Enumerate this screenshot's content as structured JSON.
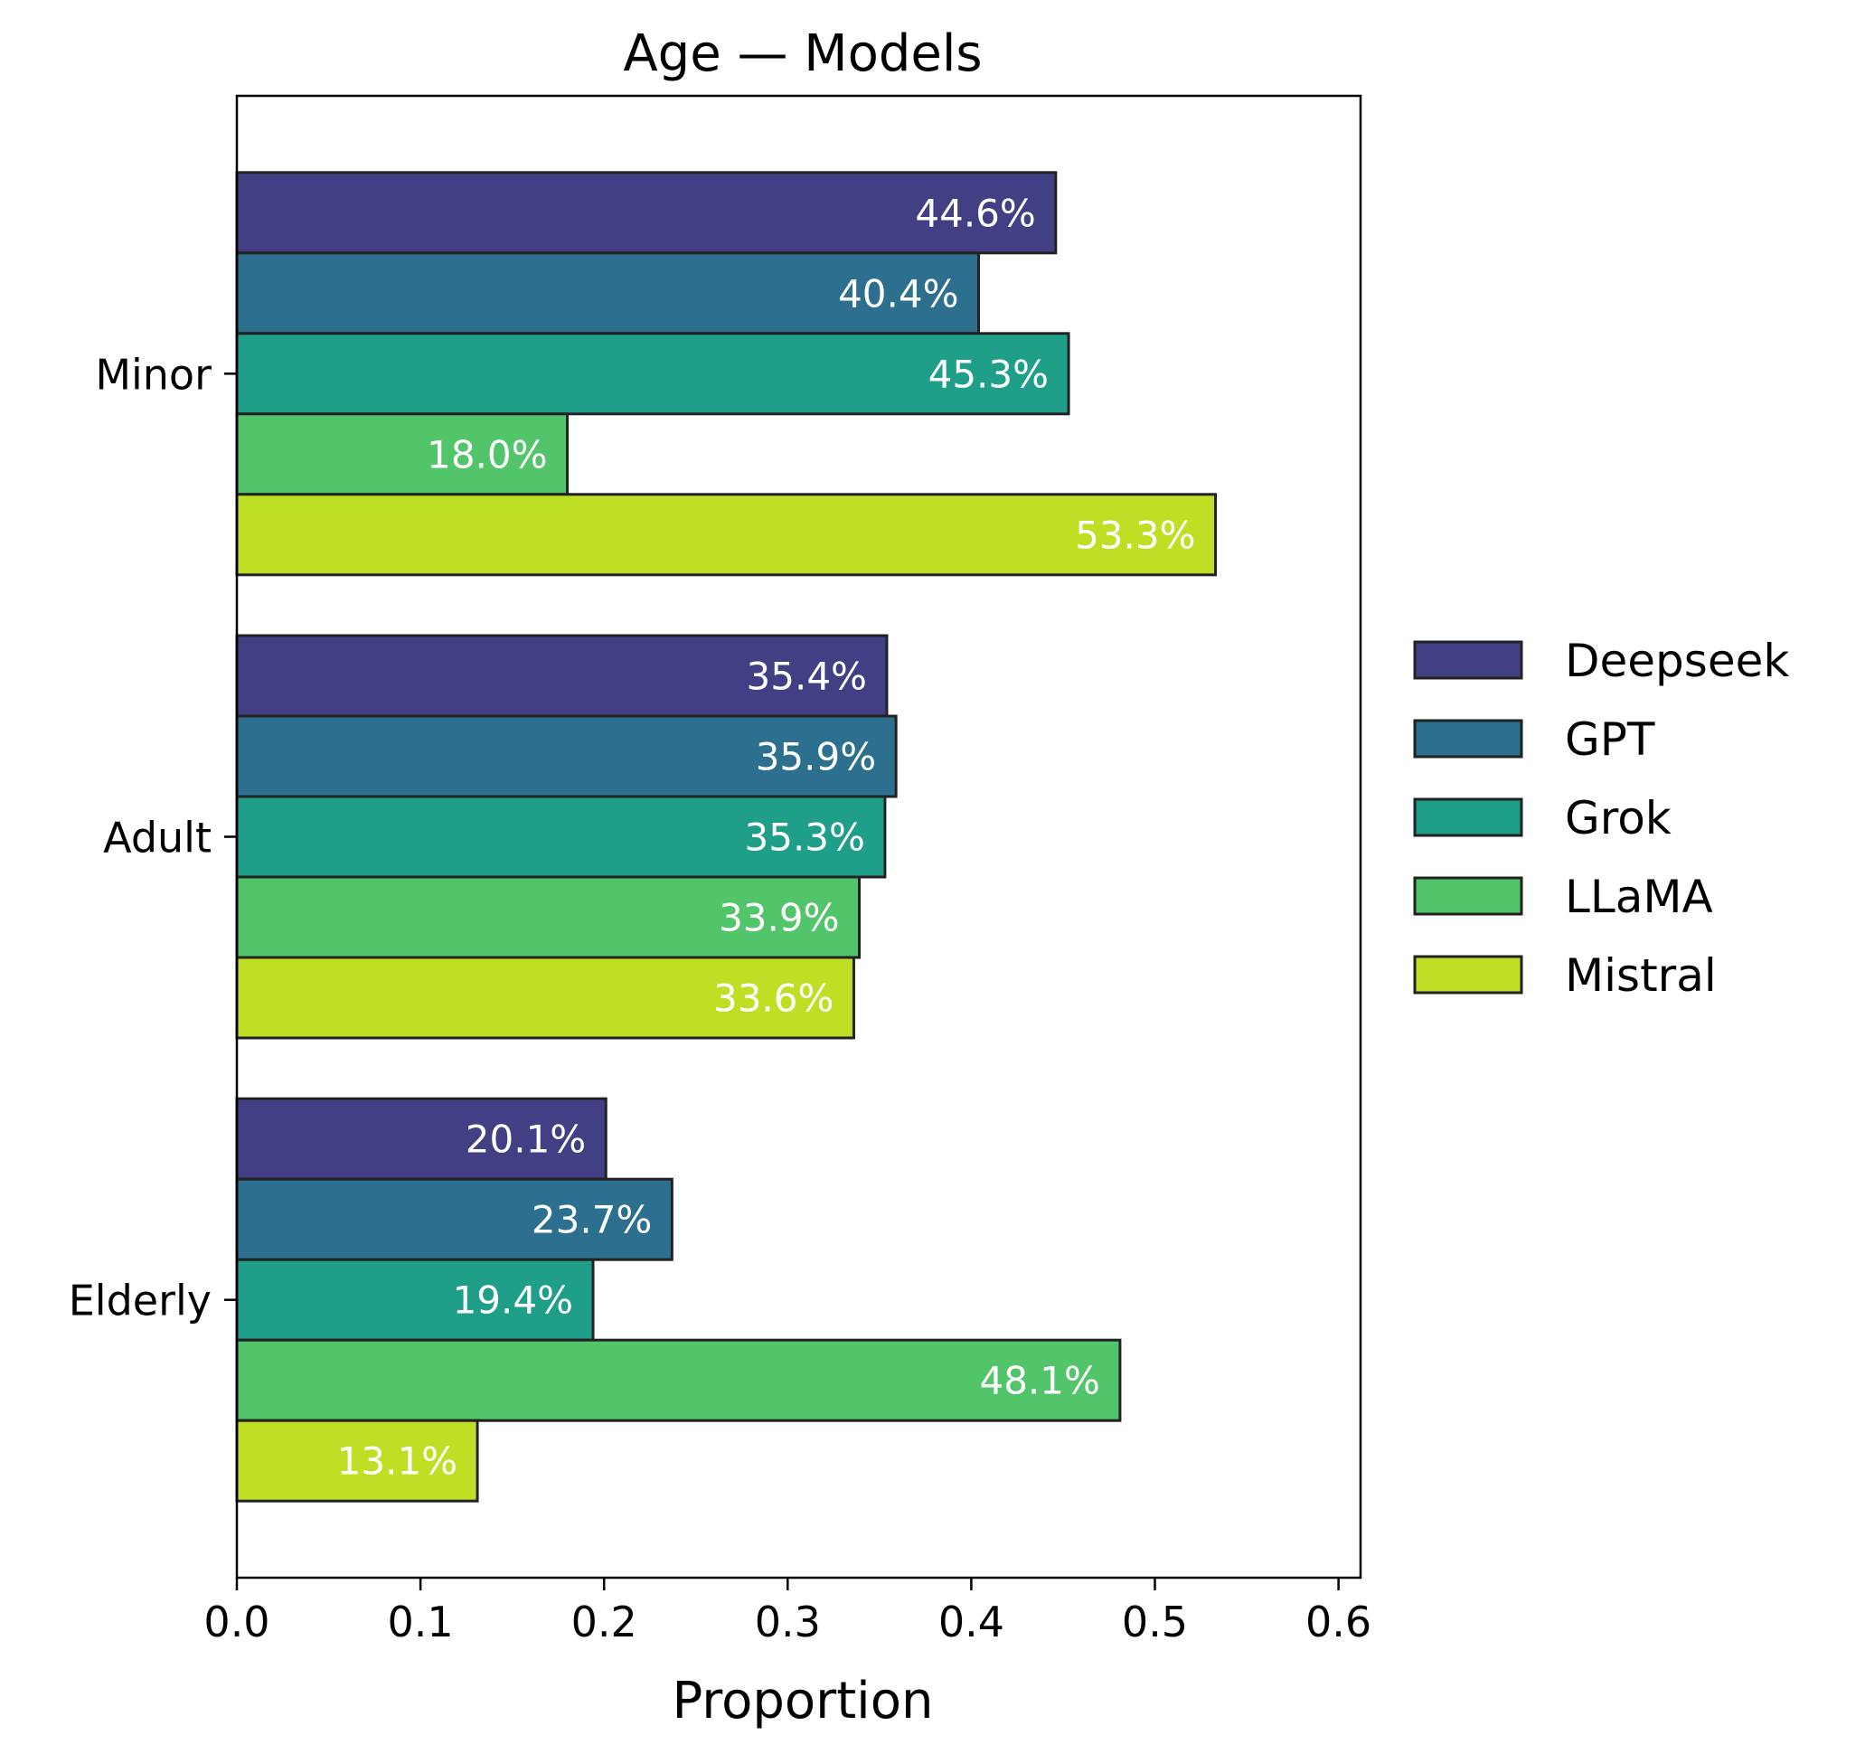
{
  "chart_data": {
    "type": "bar",
    "orientation": "horizontal",
    "title": "Age — Models",
    "xlabel": "Proportion",
    "ylabel": "",
    "xlim": [
      0,
      0.6
    ],
    "xticks": [
      0.0,
      0.1,
      0.2,
      0.3,
      0.4,
      0.5,
      0.6
    ],
    "xtick_labels": [
      "0.0",
      "0.1",
      "0.2",
      "0.3",
      "0.4",
      "0.5",
      "0.6"
    ],
    "categories": [
      "Minor",
      "Adult",
      "Elderly"
    ],
    "grid": false,
    "legend_position": "right",
    "series": [
      {
        "name": "Deepseek",
        "color": "#423F85",
        "values": [
          0.446,
          0.354,
          0.201
        ],
        "labels": [
          "44.6%",
          "35.4%",
          "20.1%"
        ]
      },
      {
        "name": "GPT",
        "color": "#2C6F8E",
        "values": [
          0.404,
          0.359,
          0.237
        ],
        "labels": [
          "40.4%",
          "35.9%",
          "23.7%"
        ]
      },
      {
        "name": "Grok",
        "color": "#1F9E89",
        "values": [
          0.453,
          0.353,
          0.194
        ],
        "labels": [
          "45.3%",
          "35.3%",
          "19.4%"
        ]
      },
      {
        "name": "LLaMA",
        "color": "#52C56A",
        "values": [
          0.18,
          0.339,
          0.481
        ],
        "labels": [
          "18.0%",
          "33.9%",
          "48.1%"
        ]
      },
      {
        "name": "Mistral",
        "color": "#BFDF25",
        "values": [
          0.533,
          0.336,
          0.131
        ],
        "labels": [
          "53.3%",
          "33.6%",
          "13.1%"
        ]
      }
    ]
  }
}
